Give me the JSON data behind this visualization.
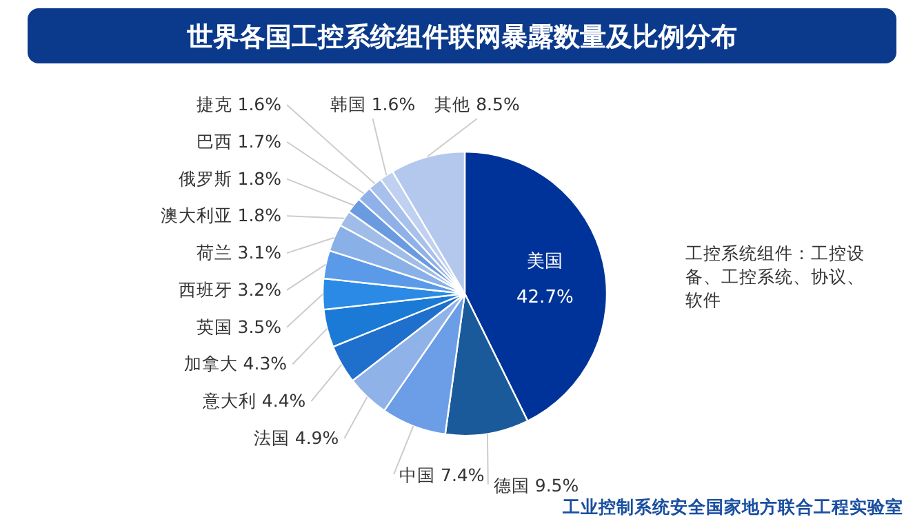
{
  "chart_data": {
    "type": "pie",
    "title": "世界各国工控系统组件联网暴露数量及比例分布",
    "categories": [
      "美国",
      "德国",
      "中国",
      "法国",
      "意大利",
      "加拿大",
      "英国",
      "西班牙",
      "荷兰",
      "澳大利亚",
      "俄罗斯",
      "巴西",
      "捷克",
      "韩国",
      "其他"
    ],
    "values": [
      42.7,
      9.5,
      7.4,
      4.9,
      4.4,
      4.3,
      3.5,
      3.2,
      3.1,
      1.8,
      1.8,
      1.7,
      1.6,
      1.6,
      8.5
    ],
    "value_labels": [
      "42.7%",
      "9.5%",
      "7.4%",
      "4.9%",
      "4.4%",
      "4.3%",
      "3.5%",
      "3.2%",
      "3.1%",
      "1.8%",
      "1.8%",
      "1.7%",
      "1.6%",
      "1.6%",
      "8.5%"
    ],
    "colors": [
      "#003399",
      "#1a5a9a",
      "#6b9ee6",
      "#8fb2e8",
      "#1f6fcc",
      "#1a7ad6",
      "#2a8ae6",
      "#5a9ae8",
      "#8ab0e8",
      "#a0bce8",
      "#6a9ae0",
      "#90b0e8",
      "#a8c0ec",
      "#c0d0f0",
      "#b4c8ee"
    ],
    "annotations": [
      "工控系统组件：工控设备、工控系统、协议、软件",
      "工业控制系统安全国家地方联合工程实验室"
    ]
  }
}
